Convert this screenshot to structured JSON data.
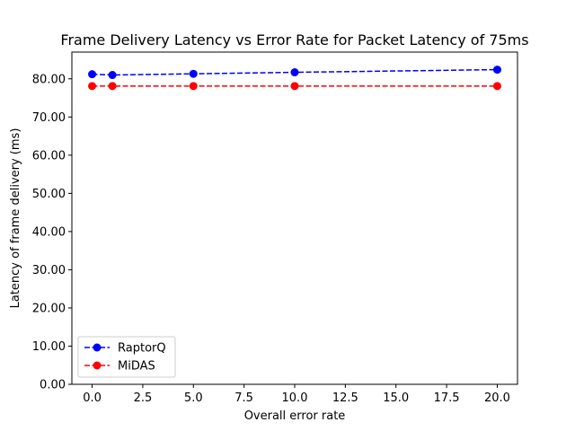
{
  "chart_data": {
    "type": "line",
    "title": "Frame Delivery Latency vs Error Rate for Packet Latency of 75ms",
    "xlabel": "Overall error rate",
    "ylabel": "Latency of frame delivery (ms)",
    "xlim": [
      -1,
      21
    ],
    "ylim": [
      0,
      87
    ],
    "xticks": [
      0.0,
      2.5,
      5.0,
      7.5,
      10.0,
      12.5,
      15.0,
      17.5,
      20.0
    ],
    "xtick_labels": [
      "0.0",
      "2.5",
      "5.0",
      "7.5",
      "10.0",
      "12.5",
      "15.0",
      "17.5",
      "20.0"
    ],
    "yticks": [
      0,
      10,
      20,
      30,
      40,
      50,
      60,
      70,
      80
    ],
    "ytick_labels": [
      "0.00",
      "10.00",
      "20.00",
      "30.00",
      "40.00",
      "50.00",
      "60.00",
      "70.00",
      "80.00"
    ],
    "legend_position": "lower-left",
    "grid": false,
    "series": [
      {
        "name": "RaptorQ",
        "color": "#0000ff",
        "x": [
          0,
          1,
          5,
          10,
          20
        ],
        "y": [
          81.2,
          81.0,
          81.3,
          81.7,
          82.4
        ]
      },
      {
        "name": "MiDAS",
        "color": "#ff0000",
        "x": [
          0,
          1,
          5,
          10,
          20
        ],
        "y": [
          78.1,
          78.1,
          78.1,
          78.1,
          78.1
        ]
      }
    ]
  }
}
